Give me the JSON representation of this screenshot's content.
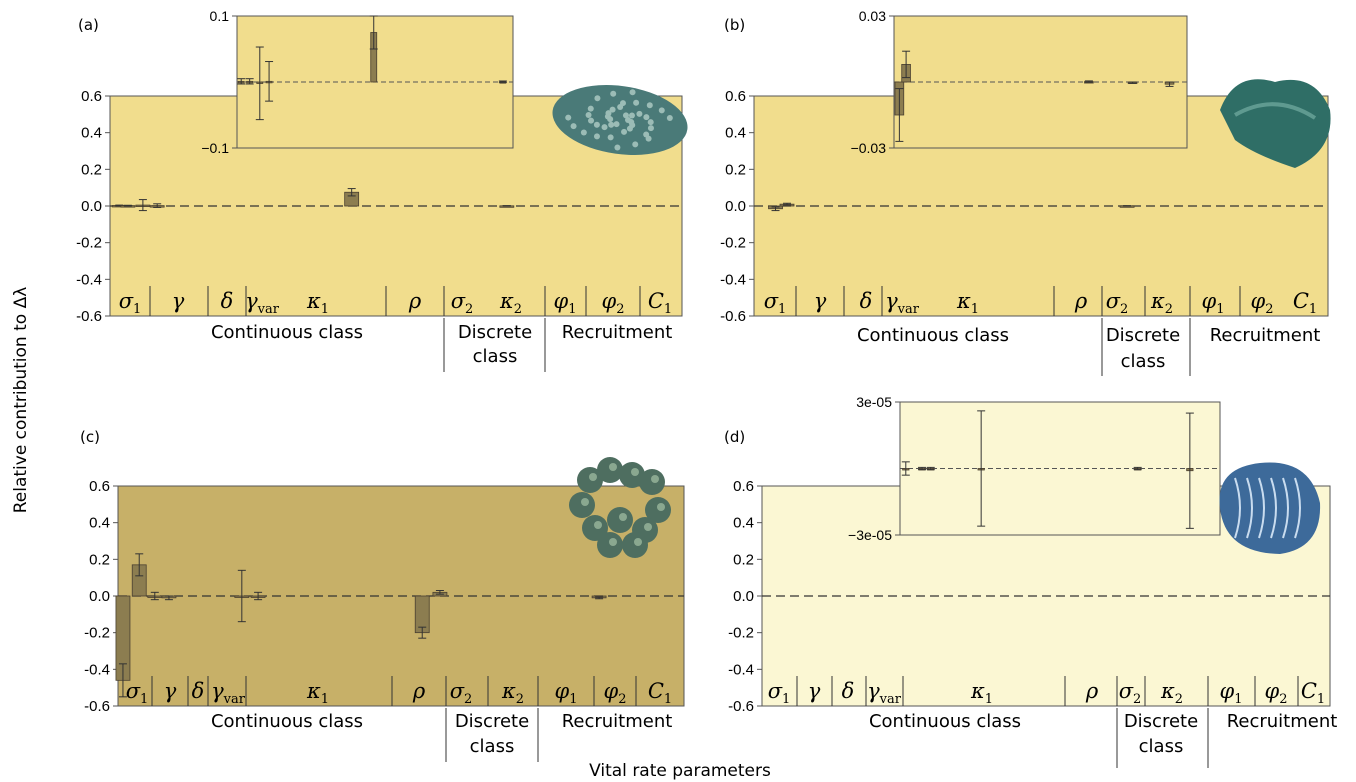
{
  "figure": {
    "ylabel": "Relative contribution to Δλ",
    "xlabel": "Vital rate parameters"
  },
  "chart_data": [
    {
      "panel": "(a)",
      "type": "bar",
      "background": "#f1dd8d",
      "bar_color": "#8c7d50",
      "ylim": [
        -0.6,
        0.6
      ],
      "yticks": [
        "0.6",
        "0.4",
        "0.2",
        "0.0",
        "-0.2",
        "-0.4",
        "-0.6"
      ],
      "bars": [
        {
          "x": 0.13,
          "value": 0.003,
          "err": 0.002
        },
        {
          "x": 0.25,
          "value": 0.002,
          "err": 0.002
        },
        {
          "x": 0.46,
          "value": 0.005,
          "err": 0.03
        },
        {
          "x": 0.66,
          "value": 0.002,
          "err": 0.01
        },
        {
          "x": 3.38,
          "value": 0.075,
          "err": 0.02
        },
        {
          "x": 5.55,
          "value": 0.001,
          "err": 0.001
        }
      ],
      "inset": {
        "ylim": [
          -0.1,
          0.1
        ],
        "ytick_labels": [
          "0.1",
          "−0.1"
        ],
        "bars": [
          {
            "x": 0.5,
            "value": 0.001,
            "err": 0.004
          },
          {
            "x": 1.5,
            "value": 0.001,
            "err": 0.004
          },
          {
            "x": 2.7,
            "value": -0.002,
            "err": 0.055
          },
          {
            "x": 3.8,
            "value": 0.001,
            "err": 0.03
          },
          {
            "x": 16.2,
            "value": 0.075,
            "err": 0.025
          },
          {
            "x": 31.5,
            "value": 0.0005,
            "err": 0.001
          }
        ]
      }
    },
    {
      "panel": "(b)",
      "type": "bar",
      "background": "#f1dd8d",
      "bar_color": "#8c7d50",
      "ylim": [
        -0.6,
        0.6
      ],
      "yticks": [
        "0.6",
        "0.4",
        "0.2",
        "0.0",
        "-0.2",
        "-0.4",
        "-0.6"
      ],
      "bars": [
        {
          "x": 0.3,
          "value": -0.015,
          "err": 0.01
        },
        {
          "x": 0.46,
          "value": 0.01,
          "err": 0.005
        },
        {
          "x": 5.2,
          "value": 0.001,
          "err": 0.001
        }
      ],
      "inset": {
        "ylim": [
          -0.03,
          0.03
        ],
        "ytick_labels": [
          "0.03",
          "−0.03"
        ],
        "bars": [
          {
            "x": 0.8,
            "value": -0.015,
            "err": 0.012
          },
          {
            "x": 1.8,
            "value": 0.008,
            "err": 0.006
          },
          {
            "x": 29.0,
            "value": 0.0002,
            "err": 0.0003
          },
          {
            "x": 35.5,
            "value": -0.0003,
            "err": 0.0003
          },
          {
            "x": 41.0,
            "value": -0.001,
            "err": 0.001
          }
        ]
      }
    },
    {
      "panel": "(c)",
      "type": "bar",
      "background": "#c7b068",
      "bar_color": "#8c7d50",
      "ylim": [
        -0.6,
        0.6
      ],
      "yticks": [
        "0.6",
        "0.4",
        "0.2",
        "0.0",
        "-0.2",
        "-0.4",
        "-0.6"
      ],
      "bars": [
        {
          "x": 0.07,
          "value": -0.46,
          "err": 0.09
        },
        {
          "x": 0.3,
          "value": 0.17,
          "err": 0.06
        },
        {
          "x": 0.52,
          "value": 0.0,
          "err": 0.02
        },
        {
          "x": 0.72,
          "value": -0.01,
          "err": 0.01
        },
        {
          "x": 1.75,
          "value": 0.0,
          "err": 0.14
        },
        {
          "x": 1.98,
          "value": 0.0,
          "err": 0.02
        },
        {
          "x": 4.3,
          "value": -0.2,
          "err": 0.03
        },
        {
          "x": 4.55,
          "value": 0.02,
          "err": 0.01
        },
        {
          "x": 6.8,
          "value": -0.01,
          "err": 0.005
        }
      ]
    },
    {
      "panel": "(d)",
      "type": "bar",
      "background": "#fbf7d3",
      "bar_color": "#8c7d50",
      "ylim": [
        -0.6,
        0.6
      ],
      "yticks": [
        "0.6",
        "0.4",
        "0.2",
        "0.0",
        "-0.2",
        "-0.4",
        "-0.6"
      ],
      "bars": [],
      "inset": {
        "ylim": [
          -3e-05,
          3e-05
        ],
        "ytick_labels": [
          "3e-05",
          "−3e-05"
        ],
        "bars": [
          {
            "x": 1.0,
            "value": 0.0,
            "err": 3e-06
          },
          {
            "x": 3.8,
            "value": 0.0,
            "err": 5e-07
          },
          {
            "x": 5.3,
            "value": 0.0,
            "err": 5e-07
          },
          {
            "x": 14.0,
            "value": 0.0,
            "err": 2.6e-05
          },
          {
            "x": 41.0,
            "value": 0.0,
            "err": 5e-07
          },
          {
            "x": 50.0,
            "value": -1e-06,
            "err": 2.6e-05
          }
        ]
      }
    }
  ],
  "params": {
    "sigma1": {
      "base": "σ",
      "sub": "1"
    },
    "gamma": {
      "base": "γ",
      "sub": ""
    },
    "delta": {
      "base": "δ",
      "sub": ""
    },
    "gammavar": {
      "base": "γ",
      "sub": "var"
    },
    "kappa1": {
      "base": "κ",
      "sub": "1"
    },
    "rho": {
      "base": "ρ",
      "sub": ""
    },
    "sigma2": {
      "base": "σ",
      "sub": "2"
    },
    "kappa2": {
      "base": "κ",
      "sub": "2"
    },
    "phi1": {
      "base": "φ",
      "sub": "1"
    },
    "phi2": {
      "base": "φ",
      "sub": "2"
    },
    "c1": {
      "base": "C",
      "sub": "1"
    }
  },
  "groups": {
    "continuous": "Continuous class",
    "discrete1": "Discrete",
    "discrete2": "class",
    "recruitment": "Recruitment"
  },
  "images": {
    "coral_a": {
      "icon": "tabular-coral-icon",
      "color": "#4a7a78"
    },
    "coral_b": {
      "icon": "foliose-coral-icon",
      "color": "#2f6e66"
    },
    "coral_c": {
      "icon": "branching-coral-icon",
      "color": "#4e6e60"
    },
    "coral_d": {
      "icon": "massive-coral-icon",
      "color": "#3d6a9a"
    }
  }
}
